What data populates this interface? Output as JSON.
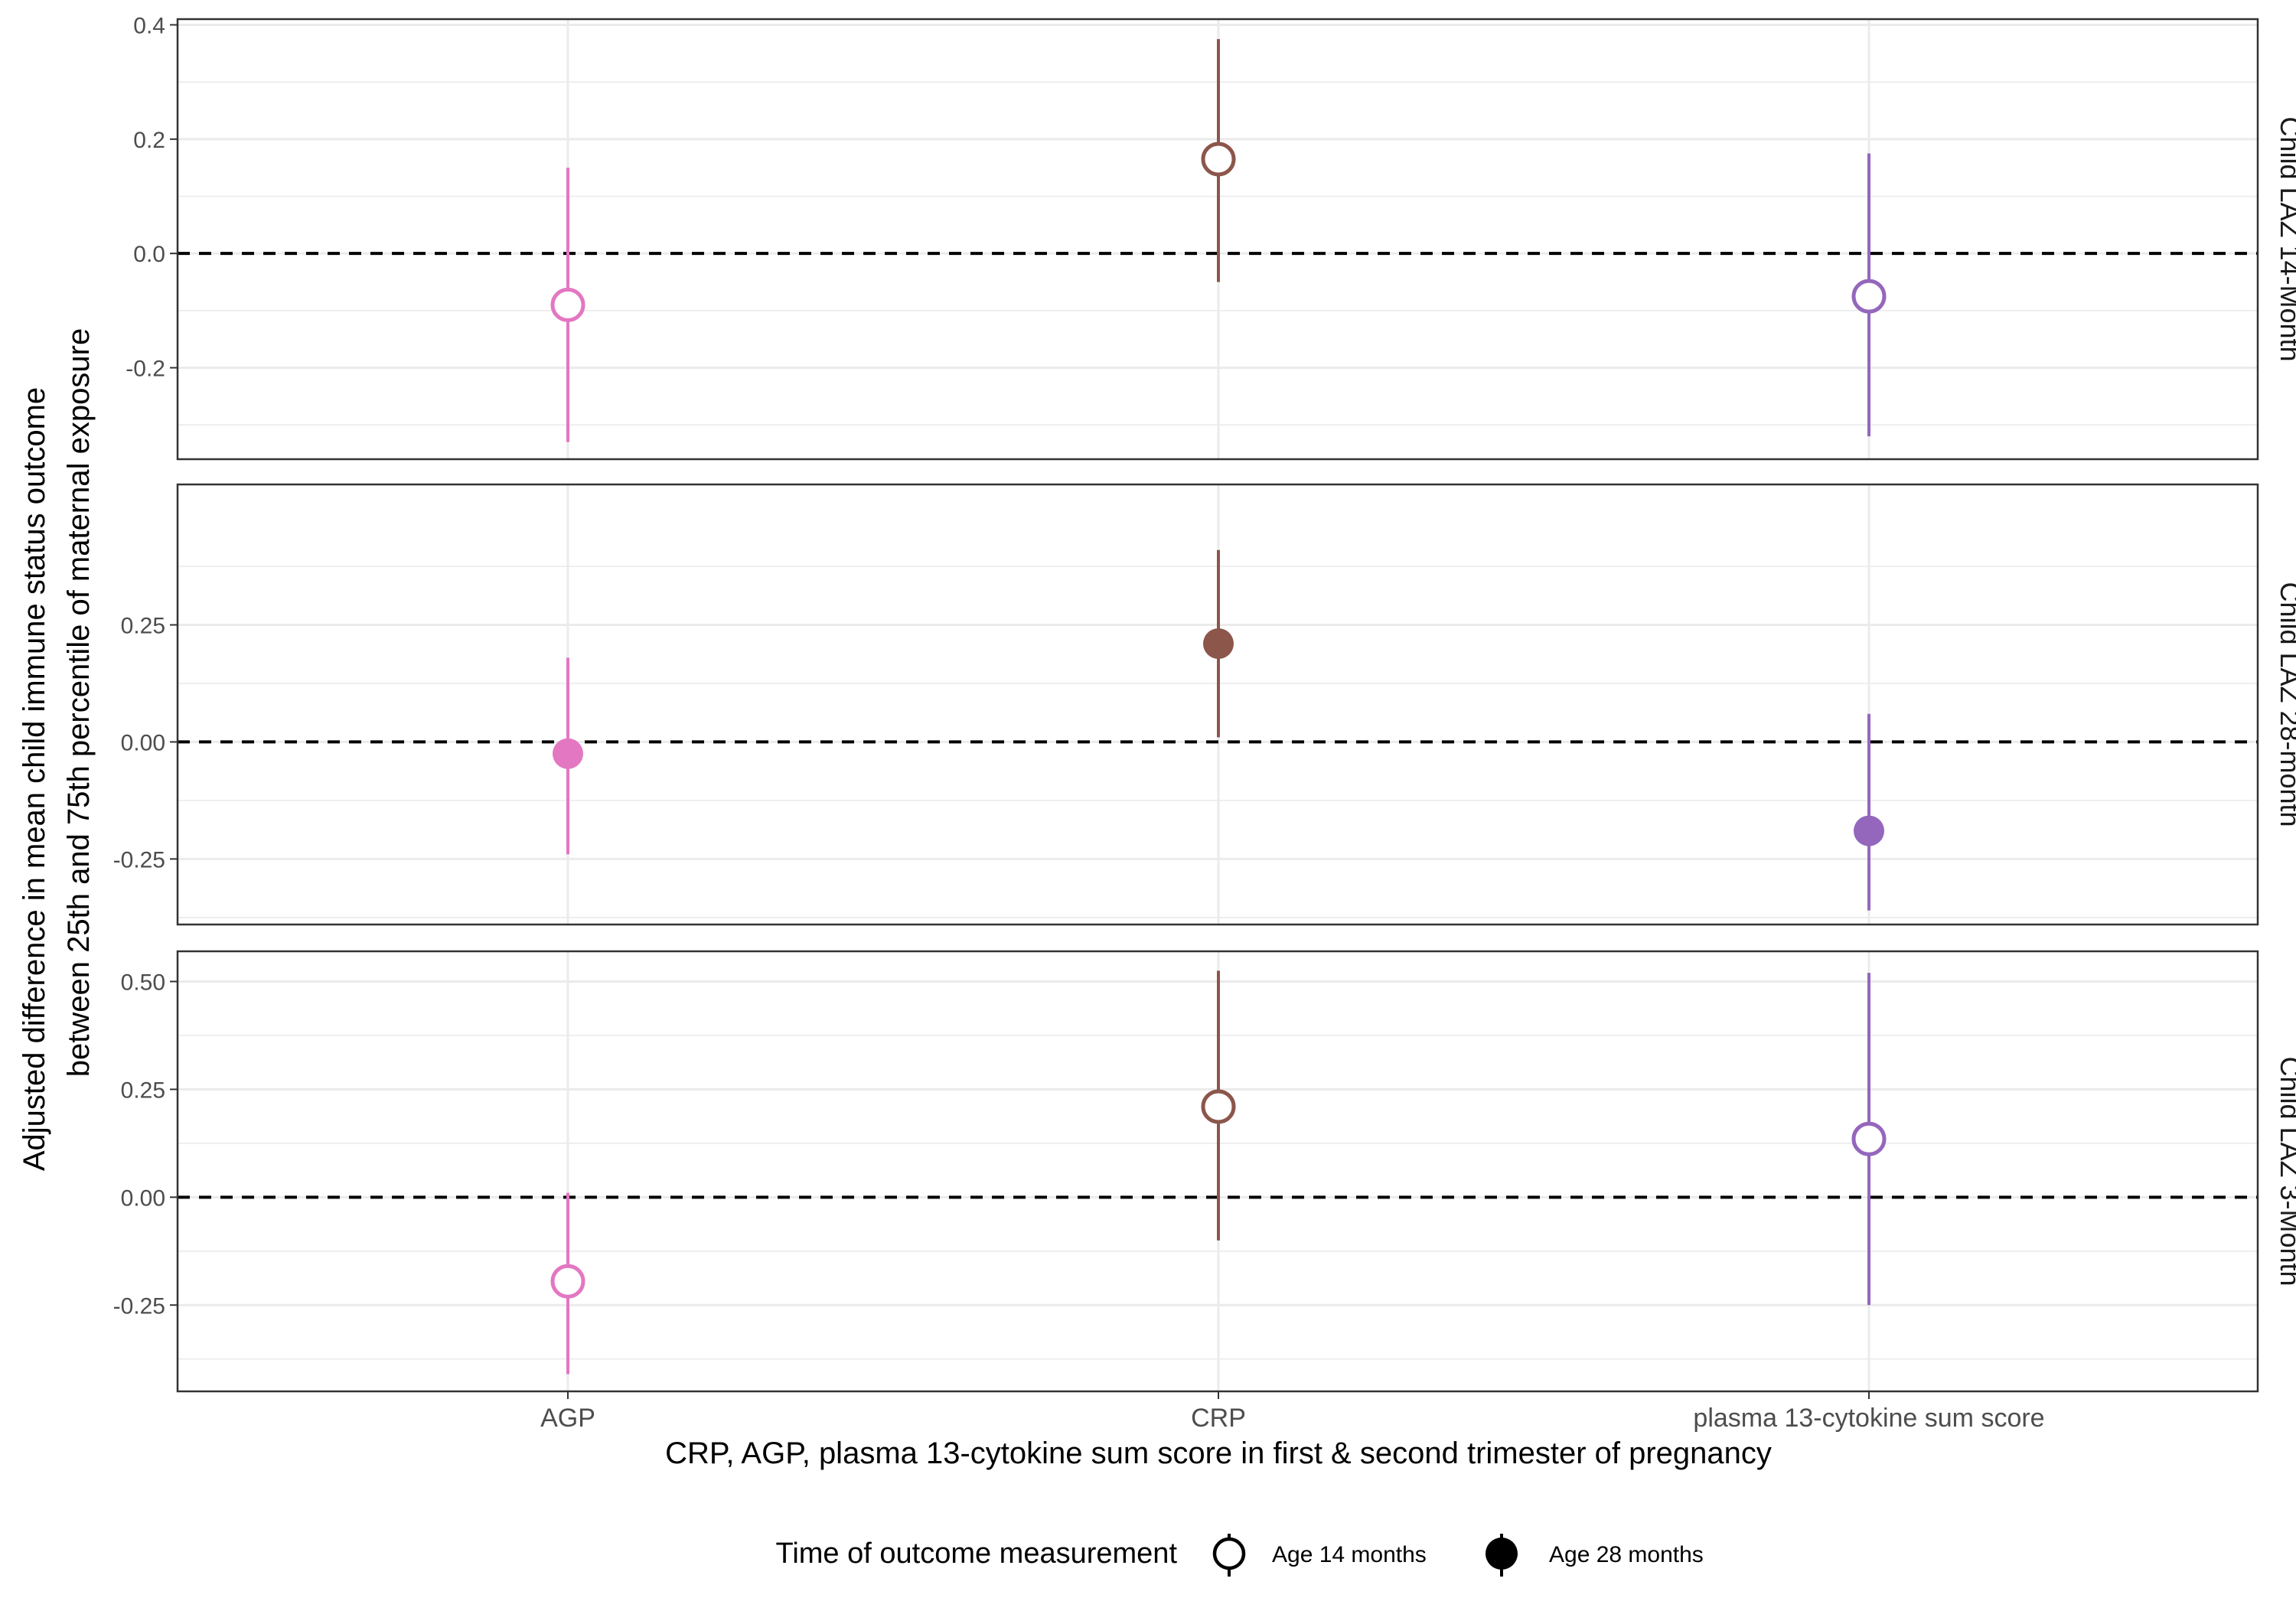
{
  "chart_data": {
    "type": "scatter",
    "subtype": "point-with-error-bars, faceted",
    "xlabel": "CRP, AGP, plasma 13-cytokine sum score in first & second trimester of pregnancy",
    "ylabel_lines": [
      "Adjusted difference in mean child immune status outcome",
      "between 25th and 75th percentile of maternal exposure"
    ],
    "categories": [
      "AGP",
      "CRP",
      "plasma 13-cytokine sum score"
    ],
    "category_colors": [
      "#e377c2",
      "#8c564b",
      "#9467bd"
    ],
    "reference_line_y": 0,
    "grid": true,
    "legend": {
      "position": "bottom",
      "title": "Time of outcome measurement",
      "items": [
        {
          "label": "Age 14 months",
          "marker": "open-circle"
        },
        {
          "label": "Age 28 months",
          "marker": "filled-circle"
        }
      ]
    },
    "panels": [
      {
        "strip": "Child LAZ 14-Month",
        "ylim": [
          -0.36,
          0.41
        ],
        "yticks": [
          -0.2,
          0.0,
          0.2,
          0.4
        ],
        "ytick_labels": [
          "-0.2",
          "0.0",
          "0.2",
          "0.4"
        ],
        "marker": "open-circle",
        "points": [
          {
            "category": "AGP",
            "estimate": -0.09,
            "lower": -0.33,
            "upper": 0.15
          },
          {
            "category": "CRP",
            "estimate": 0.165,
            "lower": -0.05,
            "upper": 0.375
          },
          {
            "category": "plasma 13-cytokine sum score",
            "estimate": -0.075,
            "lower": -0.32,
            "upper": 0.175
          }
        ]
      },
      {
        "strip": "Child LAZ 28-month",
        "ylim": [
          -0.39,
          0.55
        ],
        "yticks": [
          -0.25,
          0.0,
          0.25
        ],
        "ytick_labels": [
          "-0.25",
          "0.00",
          "0.25"
        ],
        "marker": "filled-circle",
        "points": [
          {
            "category": "AGP",
            "estimate": -0.025,
            "lower": -0.24,
            "upper": 0.18
          },
          {
            "category": "CRP",
            "estimate": 0.21,
            "lower": 0.01,
            "upper": 0.41
          },
          {
            "category": "plasma 13-cytokine sum score",
            "estimate": -0.19,
            "lower": -0.36,
            "upper": 0.06
          }
        ]
      },
      {
        "strip": "Child LAZ 3-Month",
        "ylim": [
          -0.45,
          0.57
        ],
        "yticks": [
          -0.25,
          0.0,
          0.25,
          0.5
        ],
        "ytick_labels": [
          "-0.25",
          "0.00",
          "0.25",
          "0.50"
        ],
        "marker": "open-circle",
        "points": [
          {
            "category": "AGP",
            "estimate": -0.195,
            "lower": -0.41,
            "upper": 0.01
          },
          {
            "category": "CRP",
            "estimate": 0.21,
            "lower": -0.1,
            "upper": 0.525
          },
          {
            "category": "plasma 13-cytokine sum score",
            "estimate": 0.135,
            "lower": -0.25,
            "upper": 0.52
          }
        ]
      }
    ]
  }
}
